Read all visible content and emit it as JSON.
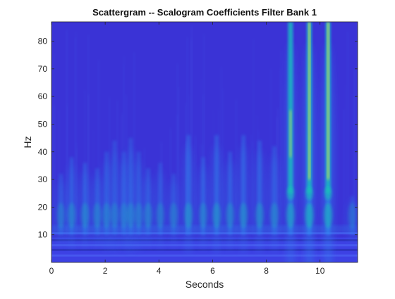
{
  "chart_data": {
    "type": "heatmap",
    "title": "Scattergram -- Scalogram Coefficients Filter Bank 1",
    "xlabel": "Seconds",
    "ylabel": "Hz",
    "xlim": [
      0,
      11.4
    ],
    "ylim": [
      0,
      87
    ],
    "xticks": [
      0,
      2,
      4,
      6,
      8,
      10
    ],
    "yticks": [
      10,
      20,
      30,
      40,
      50,
      60,
      70,
      80
    ],
    "grid": false,
    "colormap": "parula",
    "colors": {
      "background": "#3a33d6",
      "low_band": "#3f47e8",
      "mid": "#2f93f0",
      "high": "#19c4b6",
      "peak": "#f4e83c"
    },
    "transients": [
      {
        "t": 0.35,
        "top": 32,
        "strength": 0.55
      },
      {
        "t": 0.75,
        "top": 38,
        "strength": 0.65
      },
      {
        "t": 1.25,
        "top": 36,
        "strength": 0.65
      },
      {
        "t": 1.7,
        "top": 34,
        "strength": 0.6
      },
      {
        "t": 2.05,
        "top": 40,
        "strength": 0.6
      },
      {
        "t": 2.35,
        "top": 44,
        "strength": 0.55
      },
      {
        "t": 2.7,
        "top": 40,
        "strength": 0.55
      },
      {
        "t": 2.95,
        "top": 45,
        "strength": 0.6
      },
      {
        "t": 3.25,
        "top": 40,
        "strength": 0.55
      },
      {
        "t": 3.6,
        "top": 34,
        "strength": 0.6
      },
      {
        "t": 4.05,
        "top": 36,
        "strength": 0.55
      },
      {
        "t": 4.55,
        "top": 32,
        "strength": 0.55
      },
      {
        "t": 5.1,
        "top": 46,
        "strength": 0.75
      },
      {
        "t": 5.65,
        "top": 38,
        "strength": 0.6
      },
      {
        "t": 6.15,
        "top": 46,
        "strength": 0.75
      },
      {
        "t": 6.65,
        "top": 40,
        "strength": 0.65
      },
      {
        "t": 7.15,
        "top": 46,
        "strength": 0.7
      },
      {
        "t": 7.75,
        "top": 44,
        "strength": 0.7
      },
      {
        "t": 8.3,
        "top": 42,
        "strength": 0.65
      },
      {
        "t": 8.9,
        "top": 87,
        "strength": 0.95
      },
      {
        "t": 9.6,
        "top": 87,
        "strength": 1.15
      },
      {
        "t": 10.3,
        "top": 87,
        "strength": 1.1
      },
      {
        "t": 11.2,
        "top": 24,
        "strength": 0.45
      }
    ],
    "low_bands": [
      2.5,
      4.5,
      6.2,
      8.0,
      10.5
    ]
  }
}
